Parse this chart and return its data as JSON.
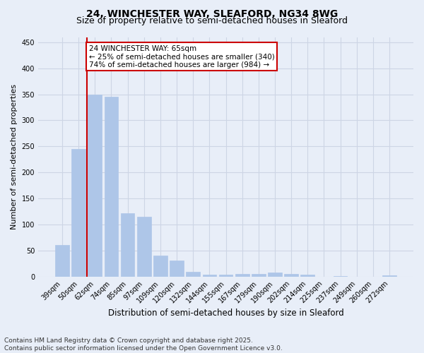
{
  "title": "24, WINCHESTER WAY, SLEAFORD, NG34 8WG",
  "subtitle": "Size of property relative to semi-detached houses in Sleaford",
  "xlabel": "Distribution of semi-detached houses by size in Sleaford",
  "ylabel": "Number of semi-detached properties",
  "categories": [
    "39sqm",
    "50sqm",
    "62sqm",
    "74sqm",
    "85sqm",
    "97sqm",
    "109sqm",
    "120sqm",
    "132sqm",
    "144sqm",
    "155sqm",
    "167sqm",
    "179sqm",
    "190sqm",
    "202sqm",
    "214sqm",
    "225sqm",
    "237sqm",
    "249sqm",
    "260sqm",
    "272sqm"
  ],
  "values": [
    60,
    245,
    350,
    345,
    122,
    115,
    40,
    30,
    9,
    4,
    4,
    5,
    5,
    8,
    5,
    3,
    0,
    1,
    0,
    0,
    2
  ],
  "bar_color": "#aec6e8",
  "bar_edgecolor": "#aec6e8",
  "vline_color": "#cc0000",
  "vline_xindex": 1.5,
  "annotation_text": "24 WINCHESTER WAY: 65sqm\n← 25% of semi-detached houses are smaller (340)\n74% of semi-detached houses are larger (984) →",
  "annotation_box_edgecolor": "#cc0000",
  "annotation_box_facecolor": "#ffffff",
  "ylim": [
    0,
    460
  ],
  "yticks": [
    0,
    50,
    100,
    150,
    200,
    250,
    300,
    350,
    400,
    450
  ],
  "grid_color": "#cdd5e5",
  "background_color": "#e8eef8",
  "footer_text": "Contains HM Land Registry data © Crown copyright and database right 2025.\nContains public sector information licensed under the Open Government Licence v3.0.",
  "title_fontsize": 10,
  "subtitle_fontsize": 9,
  "xlabel_fontsize": 8.5,
  "ylabel_fontsize": 8,
  "tick_fontsize": 7,
  "annotation_fontsize": 7.5,
  "footer_fontsize": 6.5
}
